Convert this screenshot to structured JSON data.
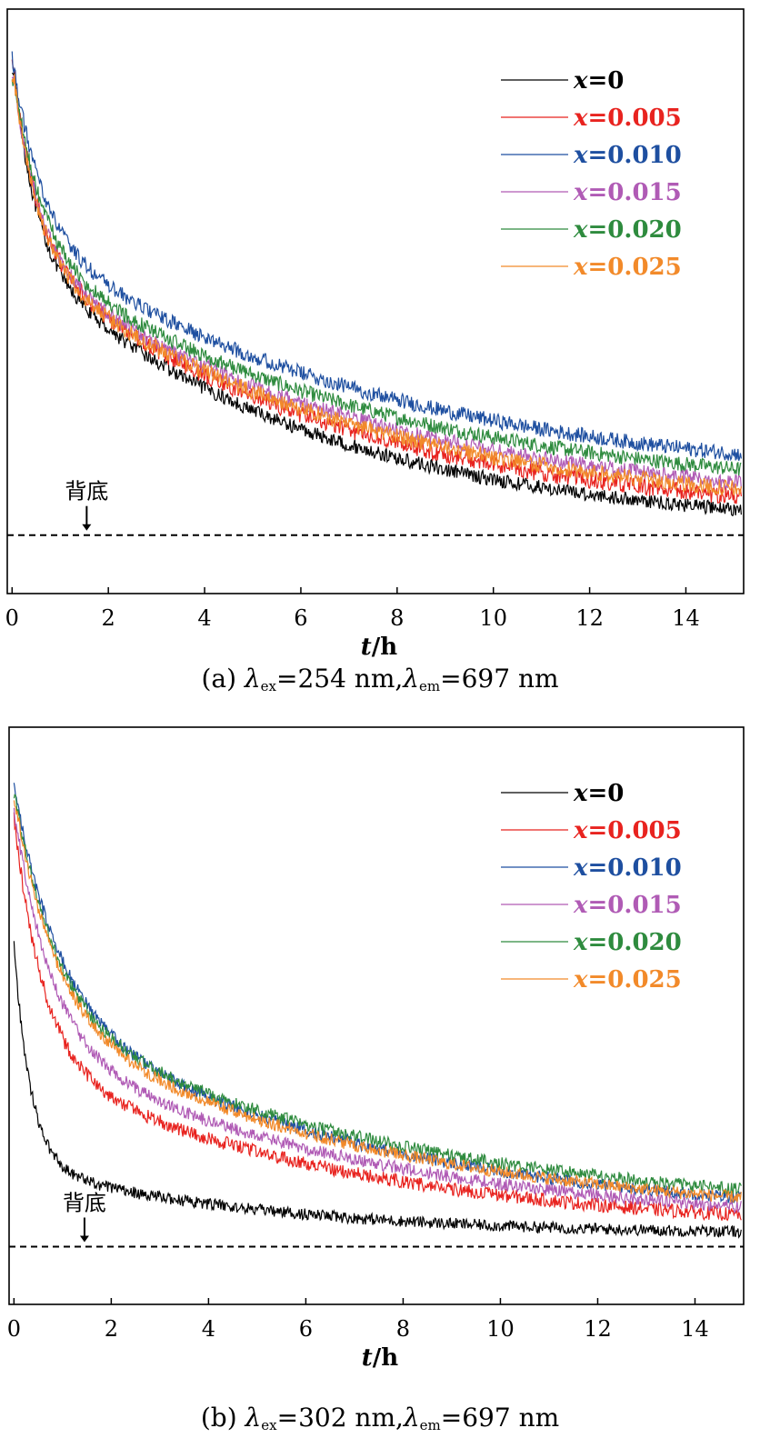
{
  "legend_label_prefix": "x",
  "colors": {
    "x=0": "#000000",
    "x=0.005": "#e8231f",
    "x=0.010": "#1e4fa0",
    "x=0.015": "#b05bb5",
    "x=0.020": "#2e8b3e",
    "x=0.025": "#f28a2a"
  },
  "chart_data": [
    {
      "type": "line",
      "panel": "a",
      "xlabel_var": "t",
      "xlabel_unit": "/h",
      "xticks": [
        0,
        2,
        4,
        6,
        8,
        10,
        12,
        14
      ],
      "xlim": [
        -0.1,
        15.2
      ],
      "ylim": [
        0,
        100
      ],
      "ylabel": "",
      "grid": false,
      "legend_position": "top-right",
      "background_label": "背底",
      "background_level": 10,
      "background_arrow_x": 1.55,
      "caption": {
        "prefix": "(a) ",
        "lambda_ex_sub": "ex",
        "lambda_ex_value": "=254 nm",
        "sep": ",",
        "lambda_em_sub": "em",
        "lambda_em_value": "=697 nm"
      },
      "series": [
        {
          "name": "=0",
          "color": "#000000",
          "y0": 90,
          "a1": 34,
          "t1": 0.45,
          "a2": 48,
          "t2": 6.0,
          "c": 10.5,
          "noise": 1.2
        },
        {
          "name": "=0.005",
          "color": "#e8231f",
          "y0": 90,
          "a1": 33,
          "t1": 0.5,
          "a2": 47,
          "t2": 6.5,
          "c": 12.0,
          "noise": 1.5
        },
        {
          "name": "=0.010",
          "color": "#1e4fa0",
          "y0": 92,
          "a1": 30,
          "t1": 0.6,
          "a2": 44,
          "t2": 7.5,
          "c": 18.0,
          "noise": 1.3
        },
        {
          "name": "=0.015",
          "color": "#b05bb5",
          "y0": 88,
          "a1": 32,
          "t1": 0.55,
          "a2": 44,
          "t2": 7.0,
          "c": 14.0,
          "noise": 1.3
        },
        {
          "name": "=0.020",
          "color": "#2e8b3e",
          "y0": 88,
          "a1": 31,
          "t1": 0.6,
          "a2": 43,
          "t2": 7.2,
          "c": 16.0,
          "noise": 1.3
        },
        {
          "name": "=0.025",
          "color": "#f28a2a",
          "y0": 88,
          "a1": 33,
          "t1": 0.5,
          "a2": 45,
          "t2": 6.8,
          "c": 13.0,
          "noise": 1.4
        }
      ]
    },
    {
      "type": "line",
      "panel": "b",
      "xlabel_var": "t",
      "xlabel_unit": "/h",
      "xticks": [
        0,
        2,
        4,
        6,
        8,
        10,
        12,
        14
      ],
      "xlim": [
        -0.1,
        15.0
      ],
      "ylim": [
        0,
        100
      ],
      "ylabel": "",
      "grid": false,
      "legend_position": "top-right",
      "background_label": "背底",
      "background_level": 10,
      "background_arrow_x": 1.45,
      "caption": {
        "prefix": "(b) ",
        "lambda_ex_sub": "ex",
        "lambda_ex_value": "=302 nm",
        "sep": ",",
        "lambda_em_sub": "em",
        "lambda_em_value": "=697 nm"
      },
      "series": [
        {
          "name": "=0",
          "color": "#000000",
          "y0": 68,
          "a1": 38,
          "t1": 0.35,
          "a2": 12,
          "t2": 5.0,
          "c": 12.0,
          "noise": 1.0
        },
        {
          "name": "=0.005",
          "color": "#e8231f",
          "y0": 88,
          "a1": 42,
          "t1": 0.6,
          "a2": 30,
          "t2": 6.5,
          "c": 12.5,
          "noise": 1.2
        },
        {
          "name": "=0.010",
          "color": "#1e4fa0",
          "y0": 90,
          "a1": 38,
          "t1": 0.9,
          "a2": 38,
          "t2": 7.0,
          "c": 14.0,
          "noise": 1.1
        },
        {
          "name": "=0.015",
          "color": "#b05bb5",
          "y0": 88,
          "a1": 40,
          "t1": 0.75,
          "a2": 33,
          "t2": 7.0,
          "c": 13.0,
          "noise": 1.1
        },
        {
          "name": "=0.020",
          "color": "#2e8b3e",
          "y0": 88,
          "a1": 38,
          "t1": 0.85,
          "a2": 36,
          "t2": 7.5,
          "c": 15.0,
          "noise": 1.1
        },
        {
          "name": "=0.025",
          "color": "#f28a2a",
          "y0": 88,
          "a1": 38,
          "t1": 0.85,
          "a2": 36,
          "t2": 7.2,
          "c": 14.0,
          "noise": 1.1
        }
      ]
    }
  ]
}
